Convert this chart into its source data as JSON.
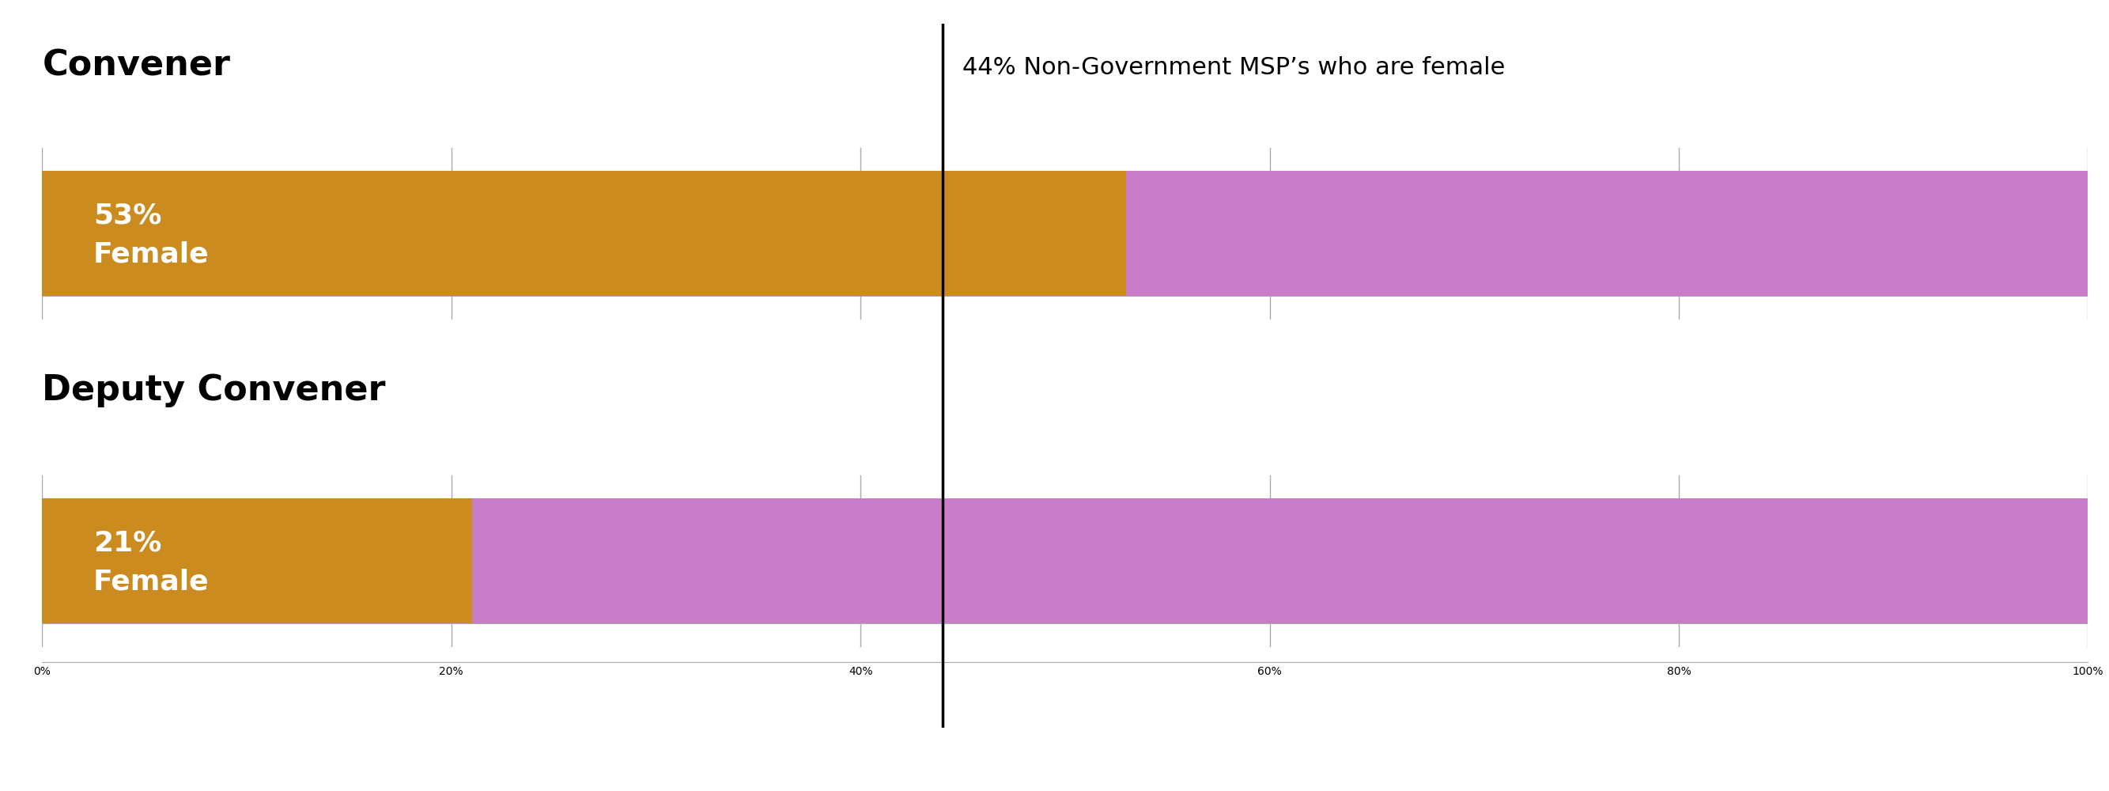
{
  "bars": [
    {
      "label": "Convener",
      "female_pct": 53,
      "male_pct": 47,
      "female_text_line1": "53%",
      "female_text_line2": "Female"
    },
    {
      "label": "Deputy Convener",
      "female_pct": 21,
      "male_pct": 79,
      "female_text_line1": "21%",
      "female_text_line2": "Female"
    }
  ],
  "female_color": "#CC8B1F",
  "male_color": "#C97DC8",
  "reference_line_pct": 44,
  "reference_label": "44% Non-Government MSP’s who are female",
  "xticks": [
    0,
    20,
    40,
    60,
    80,
    100
  ],
  "xlim": [
    0,
    100
  ],
  "title_fontsize": 32,
  "label_fontsize": 26,
  "annot_fontsize": 22,
  "tick_fontsize": 20,
  "background_color": "#ffffff",
  "text_color": "#ffffff",
  "title_color": "#000000",
  "tick_color": "#aaaaaa",
  "spine_color": "#aaaaaa"
}
